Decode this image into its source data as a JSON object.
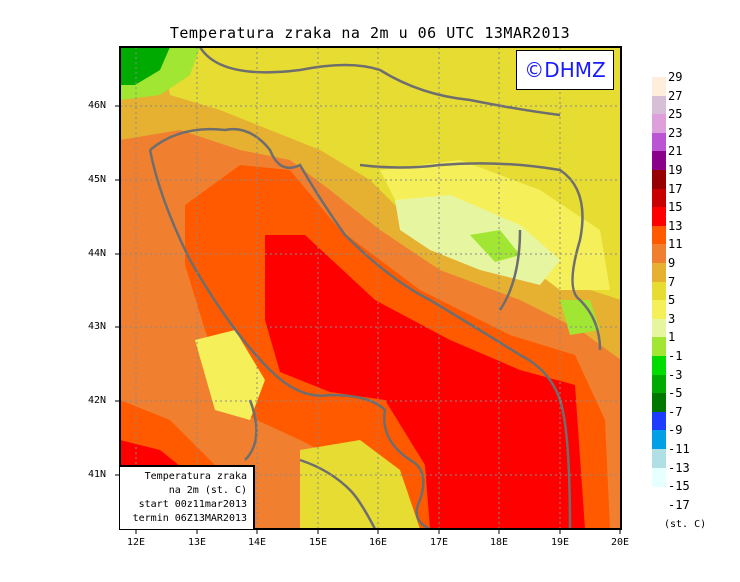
{
  "title": "Temperatura zraka na 2m u 06 UTC 13MAR2013",
  "logo": "©DHMZ",
  "legend_box": {
    "line1": "Temperatura zraka",
    "line2": "na 2m (st. C)",
    "line3": "start 00z11mar2013",
    "line4": "termin 06Z13MAR2013"
  },
  "lat_labels": [
    "46N",
    "45N",
    "44N",
    "43N",
    "42N",
    "41N"
  ],
  "lon_labels": [
    "12E",
    "13E",
    "14E",
    "15E",
    "16E",
    "17E",
    "18E",
    "19E",
    "20E"
  ],
  "colorbar": {
    "labels": [
      "29",
      "27",
      "25",
      "23",
      "21",
      "19",
      "17",
      "15",
      "13",
      "11",
      "9",
      "7",
      "5",
      "3",
      "1",
      "-1",
      "-3",
      "-5",
      "-7",
      "-9",
      "-11",
      "-13",
      "-15",
      "-17"
    ],
    "colors": [
      "#ffeedc",
      "#d8bfd8",
      "#dda0dd",
      "#ba55d3",
      "#8b008b",
      "#960000",
      "#c80000",
      "#ff0000",
      "#ff5a00",
      "#f08030",
      "#e6b030",
      "#e6dc32",
      "#f5f05a",
      "#e6f5a0",
      "#a0e632",
      "#00dc00",
      "#00aa00",
      "#007800",
      "#1e3cff",
      "#00a0e6",
      "#b0e0e6",
      "#e6ffff"
    ],
    "unit": "(st. C)"
  }
}
